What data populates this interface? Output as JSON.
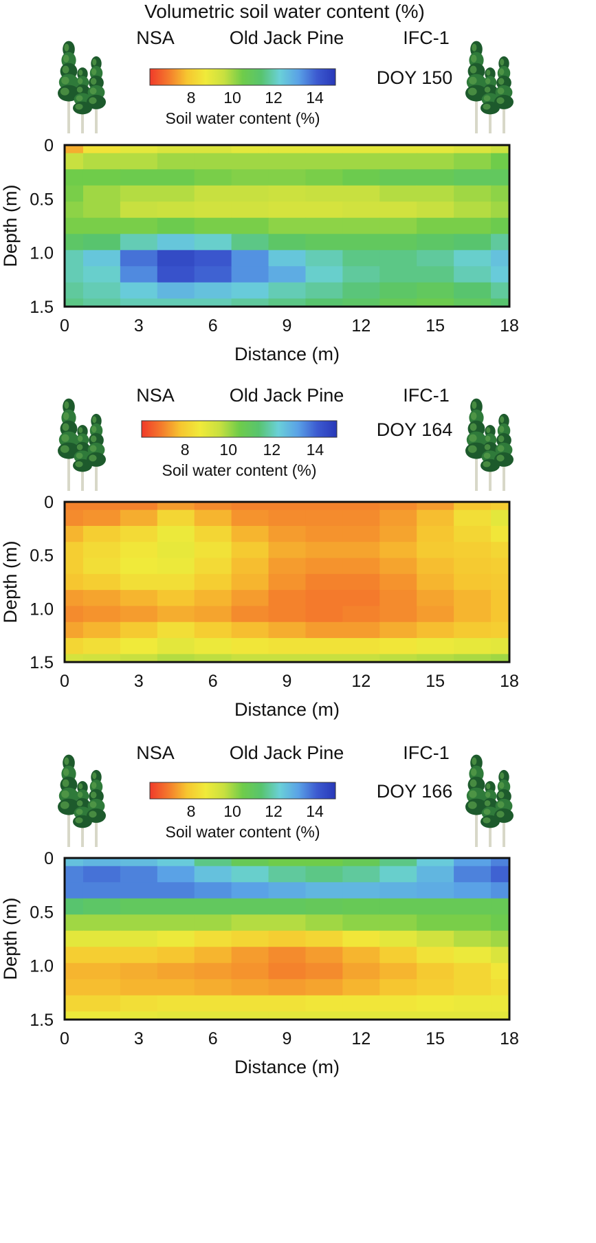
{
  "figure": {
    "title": "Volumetric soil water content (%)"
  },
  "palette": {
    "colorbar_stops": [
      "#f03a2a",
      "#f47a2c",
      "#f6c630",
      "#f0ea3a",
      "#c8e040",
      "#6fcc4a",
      "#58c46e",
      "#6ad0d8",
      "#5aa2e6",
      "#3c5ad0",
      "#2838b8"
    ],
    "tree_dark": "#1d5a2c",
    "tree_mid": "#2f7a3a",
    "tree_light": "#5aa04a",
    "trunk": "#d8d8c8"
  },
  "chart_data": [
    {
      "type": "heatmap",
      "header": {
        "region": "NSA",
        "site": "Old Jack Pine",
        "campaign": "IFC-1",
        "doy": "DOY 150"
      },
      "colorbar": {
        "label": "Soil water content (%)",
        "ticks": [
          "8",
          "10",
          "12",
          "14"
        ],
        "range": [
          6,
          15
        ]
      },
      "xlabel": "Distance (m)",
      "ylabel": "Depth (m)",
      "xlim": [
        0,
        18
      ],
      "ylim": [
        0,
        1.5
      ],
      "xticks": [
        "0",
        "3",
        "6",
        "9",
        "12",
        "15",
        "18"
      ],
      "yticks": [
        "0",
        "0.5",
        "1.0",
        "1.5"
      ],
      "x": [
        0,
        1.5,
        3,
        4.5,
        6,
        7.5,
        9,
        10.5,
        12,
        13.5,
        15,
        16.5,
        18
      ],
      "depth": [
        0,
        0.15,
        0.3,
        0.45,
        0.6,
        0.75,
        0.9,
        1.05,
        1.2,
        1.35,
        1.5
      ],
      "values": [
        [
          7.5,
          8.5,
          9.0,
          9.2,
          9.2,
          9.0,
          9.0,
          9.0,
          9.0,
          9.0,
          9.0,
          9.2,
          9.5
        ],
        [
          9.6,
          9.8,
          9.8,
          10.0,
          10.0,
          10.0,
          10.0,
          10.0,
          10.0,
          10.0,
          10.0,
          10.2,
          10.5
        ],
        [
          10.5,
          10.5,
          10.6,
          10.6,
          10.4,
          10.3,
          10.3,
          10.4,
          10.6,
          10.8,
          10.8,
          11.0,
          11.0
        ],
        [
          10.4,
          10.0,
          9.8,
          9.8,
          9.6,
          9.6,
          9.5,
          9.6,
          9.6,
          9.8,
          9.8,
          10.0,
          10.2
        ],
        [
          10.2,
          10.0,
          9.6,
          9.5,
          9.4,
          9.4,
          9.3,
          9.3,
          9.4,
          9.4,
          9.6,
          9.8,
          10.0
        ],
        [
          10.4,
          10.4,
          10.4,
          10.6,
          10.4,
          10.4,
          10.2,
          10.2,
          10.2,
          10.2,
          10.4,
          10.4,
          10.6
        ],
        [
          11.2,
          11.4,
          12.0,
          12.5,
          12.2,
          11.6,
          11.2,
          11.0,
          11.0,
          11.0,
          11.2,
          11.4,
          11.8
        ],
        [
          12.0,
          12.5,
          13.8,
          14.5,
          14.2,
          13.4,
          12.5,
          12.0,
          11.6,
          11.6,
          11.8,
          12.2,
          12.6
        ],
        [
          12.0,
          12.2,
          13.5,
          14.3,
          14.0,
          13.4,
          13.0,
          12.2,
          11.8,
          11.6,
          11.6,
          12.0,
          12.4
        ],
        [
          11.8,
          12.0,
          12.4,
          12.8,
          12.6,
          12.4,
          12.0,
          11.8,
          11.5,
          11.2,
          11.0,
          11.4,
          11.8
        ],
        [
          11.6,
          11.8,
          12.0,
          12.0,
          12.0,
          11.8,
          11.6,
          11.4,
          11.2,
          10.8,
          10.6,
          11.0,
          11.4
        ]
      ]
    },
    {
      "type": "heatmap",
      "header": {
        "region": "NSA",
        "site": "Old Jack Pine",
        "campaign": "IFC-1",
        "doy": "DOY 164"
      },
      "colorbar": {
        "label": "Soil water content (%)",
        "ticks": [
          "8",
          "10",
          "12",
          "14"
        ],
        "range": [
          6,
          15
        ]
      },
      "xlabel": "Distance (m)",
      "ylabel": "Depth (m)",
      "xlim": [
        0,
        18
      ],
      "ylim": [
        0,
        1.5
      ],
      "xticks": [
        "0",
        "3",
        "6",
        "9",
        "12",
        "15",
        "18"
      ],
      "yticks": [
        "0",
        "0.5",
        "1.0",
        "1.5"
      ],
      "x": [
        0,
        1.5,
        3,
        4.5,
        6,
        7.5,
        9,
        10.5,
        12,
        13.5,
        15,
        16.5,
        18
      ],
      "depth": [
        0,
        0.15,
        0.3,
        0.45,
        0.6,
        0.75,
        0.9,
        1.05,
        1.2,
        1.35,
        1.5
      ],
      "values": [
        [
          7.0,
          7.0,
          7.0,
          7.3,
          7.1,
          7.0,
          7.0,
          7.0,
          7.0,
          7.1,
          7.3,
          7.8,
          8.0
        ],
        [
          7.1,
          7.2,
          7.5,
          8.2,
          7.6,
          7.2,
          7.1,
          7.1,
          7.1,
          7.3,
          7.7,
          8.4,
          9.0
        ],
        [
          7.6,
          8.0,
          8.3,
          8.8,
          8.2,
          7.6,
          7.3,
          7.2,
          7.2,
          7.4,
          7.8,
          8.2,
          8.6
        ],
        [
          8.0,
          8.3,
          8.6,
          8.9,
          8.5,
          7.9,
          7.5,
          7.4,
          7.4,
          7.6,
          7.9,
          8.0,
          8.2
        ],
        [
          8.0,
          8.4,
          8.7,
          8.8,
          8.3,
          7.7,
          7.3,
          7.2,
          7.2,
          7.4,
          7.7,
          7.9,
          8.0
        ],
        [
          7.8,
          8.0,
          8.4,
          8.4,
          8.0,
          7.6,
          7.2,
          7.0,
          7.0,
          7.2,
          7.6,
          7.8,
          7.9
        ],
        [
          7.3,
          7.4,
          7.6,
          7.8,
          7.6,
          7.3,
          7.0,
          6.9,
          6.9,
          7.1,
          7.4,
          7.6,
          7.8
        ],
        [
          7.1,
          7.2,
          7.3,
          7.5,
          7.4,
          7.1,
          7.0,
          6.9,
          7.0,
          7.1,
          7.3,
          7.6,
          7.8
        ],
        [
          7.4,
          7.6,
          7.9,
          8.4,
          8.0,
          7.7,
          7.5,
          7.3,
          7.3,
          7.5,
          7.7,
          7.9,
          8.0
        ],
        [
          8.2,
          8.4,
          8.7,
          9.0,
          8.8,
          8.6,
          8.5,
          8.5,
          8.5,
          8.6,
          8.8,
          8.9,
          9.0
        ],
        [
          9.3,
          9.4,
          9.6,
          9.8,
          9.7,
          9.6,
          9.6,
          9.6,
          9.6,
          9.7,
          9.8,
          9.9,
          10.0
        ]
      ]
    },
    {
      "type": "heatmap",
      "header": {
        "region": "NSA",
        "site": "Old Jack Pine",
        "campaign": "IFC-1",
        "doy": "DOY 166"
      },
      "colorbar": {
        "label": "Soil water content (%)",
        "ticks": [
          "8",
          "10",
          "12",
          "14"
        ],
        "range": [
          6,
          15
        ]
      },
      "xlabel": "Distance (m)",
      "ylabel": "Depth (m)",
      "xlim": [
        0,
        18
      ],
      "ylim": [
        0,
        1.5
      ],
      "xticks": [
        "0",
        "3",
        "6",
        "9",
        "12",
        "15",
        "18"
      ],
      "yticks": [
        "0",
        "0.5",
        "1.0",
        "1.5"
      ],
      "x": [
        0,
        1.5,
        3,
        4.5,
        6,
        7.5,
        9,
        10.5,
        12,
        13.5,
        15,
        16.5,
        18
      ],
      "depth": [
        0,
        0.15,
        0.3,
        0.45,
        0.6,
        0.75,
        0.9,
        1.05,
        1.2,
        1.35,
        1.5
      ],
      "values": [
        [
          12.6,
          12.8,
          12.7,
          12.4,
          11.6,
          10.8,
          10.5,
          10.5,
          10.8,
          11.6,
          12.4,
          13.2,
          13.6
        ],
        [
          13.6,
          13.8,
          13.6,
          13.2,
          12.6,
          12.2,
          11.8,
          11.6,
          11.8,
          12.2,
          12.8,
          13.6,
          14.0
        ],
        [
          13.6,
          13.6,
          13.6,
          13.6,
          13.4,
          13.2,
          13.0,
          12.8,
          12.8,
          12.9,
          13.0,
          13.2,
          13.4
        ],
        [
          11.4,
          11.2,
          11.0,
          11.0,
          11.0,
          11.0,
          11.0,
          10.9,
          10.8,
          10.8,
          10.8,
          10.8,
          10.8
        ],
        [
          10.0,
          10.0,
          10.0,
          10.0,
          10.0,
          9.8,
          9.8,
          10.0,
          10.2,
          10.2,
          10.4,
          10.4,
          10.6
        ],
        [
          9.0,
          9.0,
          9.0,
          8.8,
          8.4,
          8.2,
          8.0,
          8.2,
          8.6,
          9.0,
          9.4,
          9.8,
          10.0
        ],
        [
          8.0,
          8.0,
          8.0,
          7.8,
          7.6,
          7.3,
          7.1,
          7.3,
          7.6,
          8.0,
          8.5,
          8.8,
          9.2
        ],
        [
          7.6,
          7.6,
          7.5,
          7.4,
          7.3,
          7.2,
          7.0,
          7.1,
          7.4,
          7.6,
          7.9,
          8.2,
          8.6
        ],
        [
          7.7,
          7.7,
          7.6,
          7.6,
          7.5,
          7.4,
          7.3,
          7.4,
          7.6,
          7.8,
          8.0,
          8.2,
          8.4
        ],
        [
          8.2,
          8.2,
          8.4,
          8.5,
          8.5,
          8.5,
          8.5,
          8.6,
          8.6,
          8.6,
          8.7,
          8.8,
          8.8
        ],
        [
          8.8,
          8.8,
          8.9,
          9.0,
          9.0,
          9.0,
          9.0,
          9.0,
          9.0,
          9.0,
          9.0,
          9.0,
          9.0
        ]
      ]
    }
  ]
}
